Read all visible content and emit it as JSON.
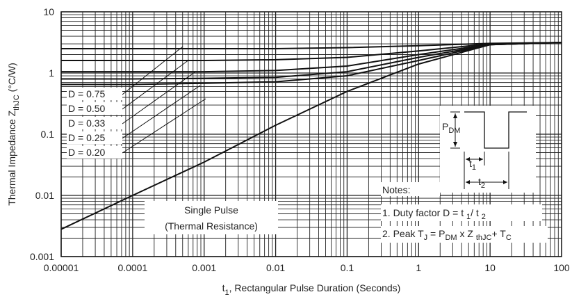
{
  "chart_data": {
    "type": "line",
    "x_scale": "log",
    "y_scale": "log",
    "xlim": [
      1e-05,
      100
    ],
    "ylim": [
      0.001,
      10
    ],
    "grid": true,
    "x_ticks": [
      "0.00001",
      "0.0001",
      "0.001",
      "0.01",
      "0.1",
      "1",
      "10",
      "100"
    ],
    "y_ticks": [
      "0.001",
      "0.01",
      "0.1",
      "1",
      "10"
    ],
    "xlabel": {
      "pre": "t",
      "sub": "1",
      "post": ", Rectangular Pulse Duration (Seconds)"
    },
    "ylabel": {
      "pre": "Thermal Impedance Z",
      "sub": "thJC",
      "post": " (°C/W)"
    },
    "series": [
      {
        "name": "D = 0.75",
        "x": [
          1e-05,
          0.0001,
          0.001,
          0.01,
          0.1,
          1,
          10,
          100
        ],
        "y": [
          2.5,
          2.5,
          2.5,
          2.5,
          2.6,
          2.8,
          3.05,
          3.15
        ]
      },
      {
        "name": "D = 0.50",
        "x": [
          1e-05,
          0.0001,
          0.001,
          0.01,
          0.1,
          1,
          10,
          100
        ],
        "y": [
          1.6,
          1.6,
          1.6,
          1.65,
          1.8,
          2.3,
          3.0,
          3.15
        ]
      },
      {
        "name": "D = 0.33",
        "x": [
          1e-05,
          0.0001,
          0.001,
          0.01,
          0.1,
          1,
          10,
          100
        ],
        "y": [
          1.05,
          1.05,
          1.05,
          1.1,
          1.3,
          2.0,
          2.95,
          3.15
        ]
      },
      {
        "name": "D = 0.25",
        "x": [
          1e-05,
          0.0001,
          0.001,
          0.01,
          0.1,
          1,
          10,
          100
        ],
        "y": [
          0.8,
          0.8,
          0.82,
          0.85,
          1.05,
          1.8,
          2.9,
          3.15
        ]
      },
      {
        "name": "D = 0.20",
        "x": [
          1e-05,
          0.0001,
          0.001,
          0.01,
          0.1,
          1,
          10,
          100
        ],
        "y": [
          0.65,
          0.65,
          0.68,
          0.72,
          0.9,
          1.6,
          2.9,
          3.15
        ]
      },
      {
        "name": "Single Pulse (Thermal Resistance)",
        "x": [
          1e-05,
          0.0001,
          0.001,
          0.01,
          0.1,
          1,
          10,
          100
        ],
        "y": [
          0.0028,
          0.01,
          0.035,
          0.14,
          0.5,
          1.4,
          2.9,
          3.15
        ]
      }
    ],
    "duty_labels": [
      "D = 0.75",
      "D = 0.50",
      "D = 0.33",
      "D = 0.25",
      "D = 0.20"
    ],
    "single_pulse_label": [
      "Single Pulse",
      "(Thermal Resistance)"
    ],
    "inset": {
      "pdm": {
        "pre": "P",
        "sub": "DM"
      },
      "t1": {
        "pre": "t",
        "sub": "1"
      },
      "t2": {
        "pre": "t",
        "sub": "2"
      }
    },
    "notes": {
      "title": "Notes:",
      "line1": {
        "a": "1. Duty factor D = t ",
        "b": "1",
        "c": "/ t ",
        "d": "2"
      },
      "line2": {
        "a": "2. Peak T",
        "b": "J",
        "c": " = P",
        "d": "DM",
        "e": " x Z ",
        "f": "thJC",
        "g": "+ T",
        "h": "C"
      }
    }
  }
}
